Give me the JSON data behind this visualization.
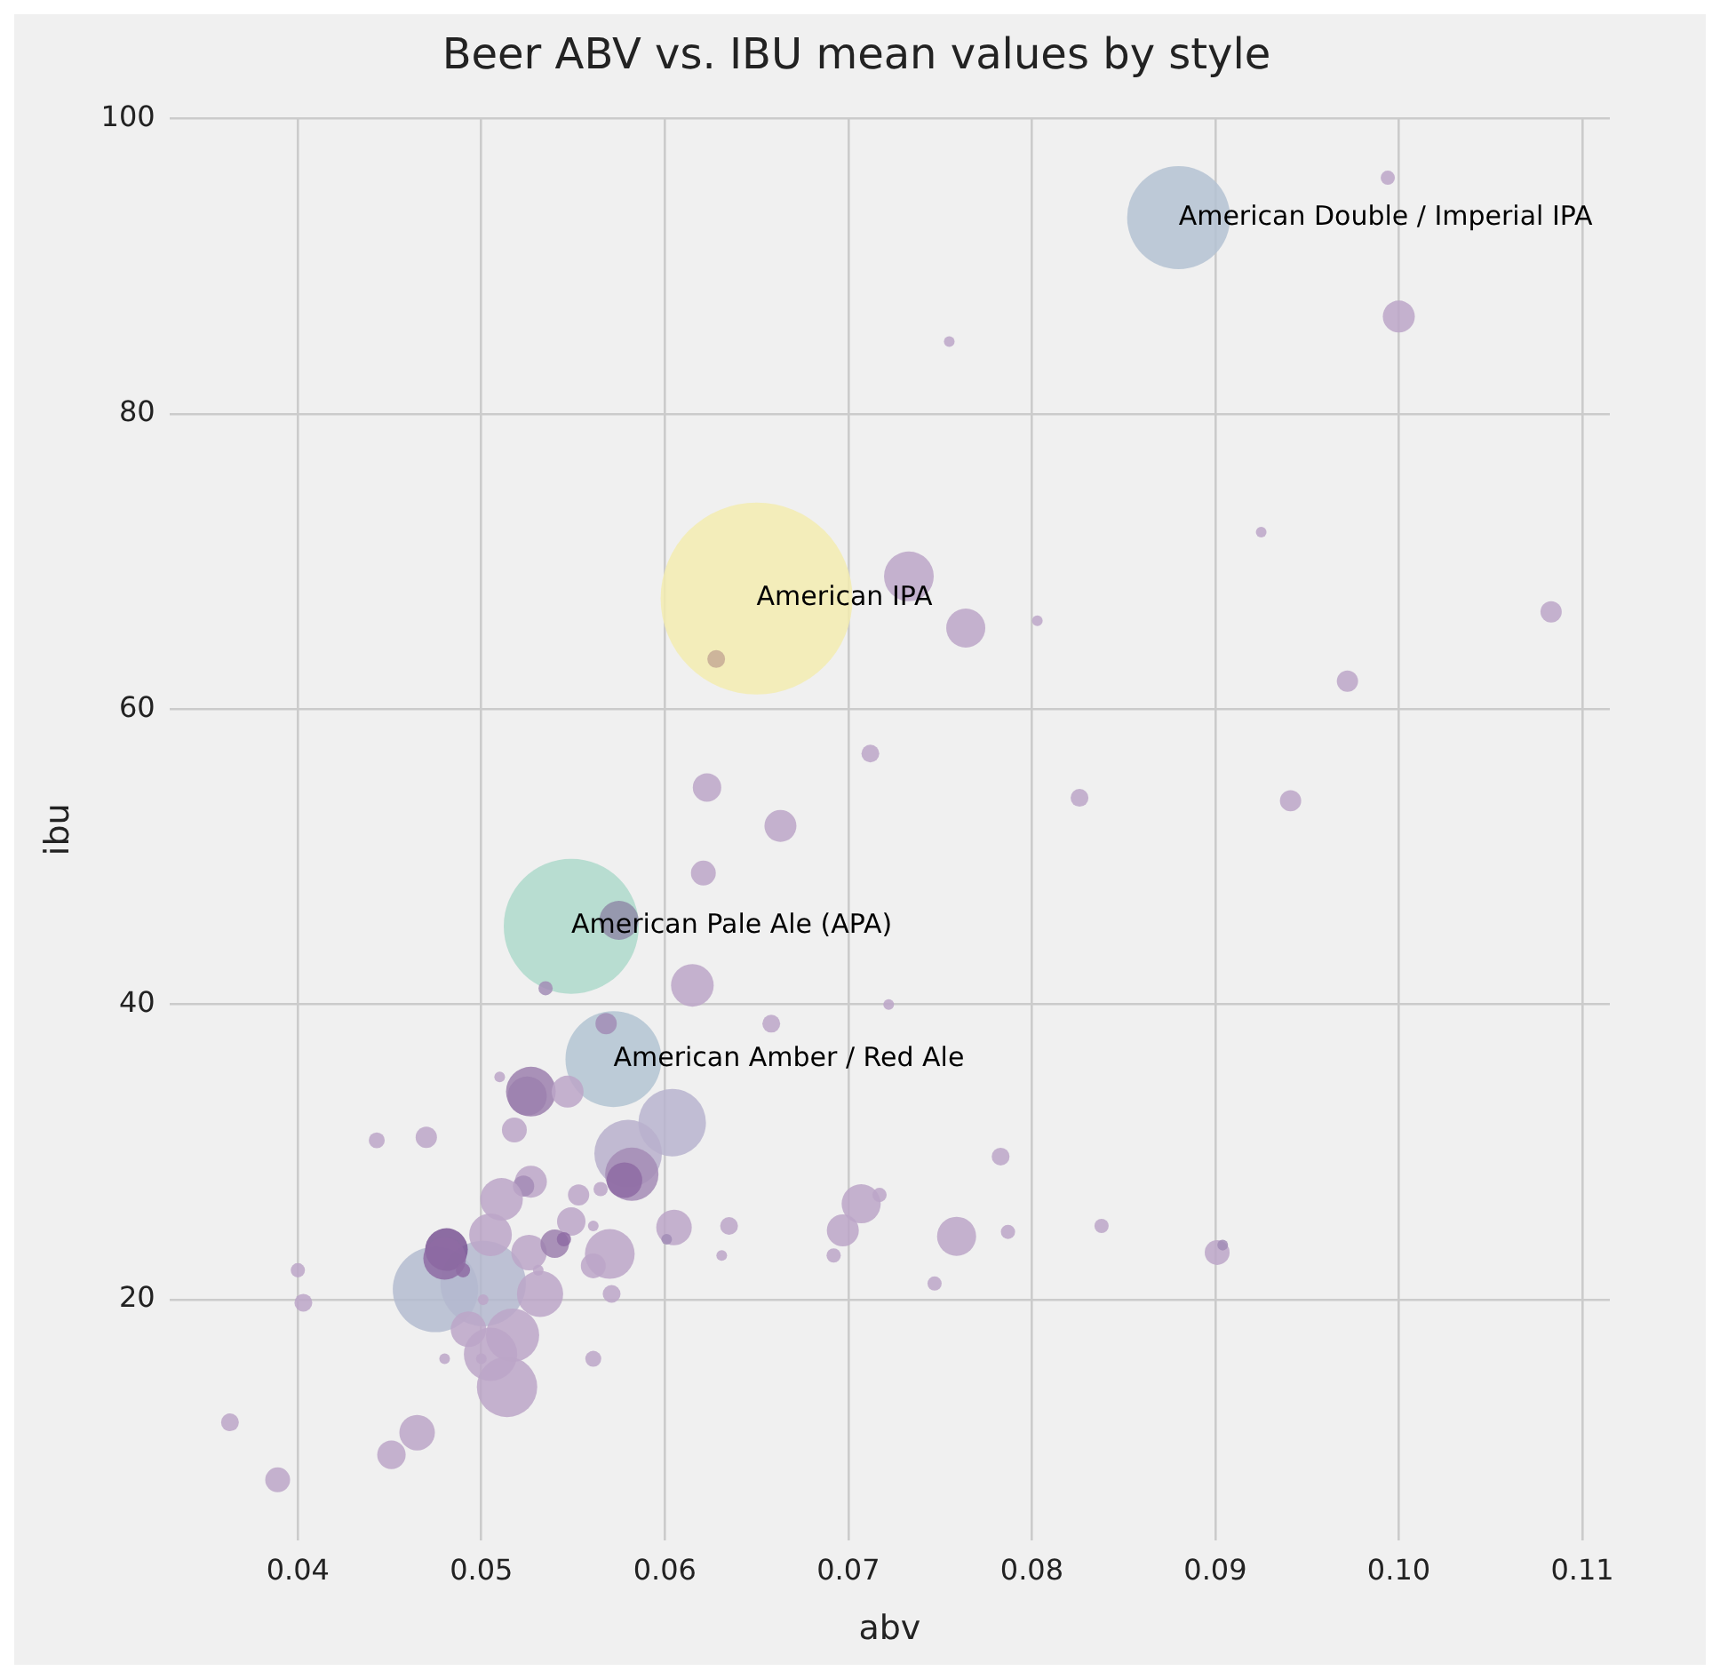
{
  "chart_data": {
    "type": "bubble",
    "title": "Beer ABV vs. IBU mean values by style",
    "xlabel": "abv",
    "ylabel": "ibu",
    "xlim": [
      0.033,
      0.1115
    ],
    "ylim": [
      3.7,
      100
    ],
    "xticks": [
      0.04,
      0.05,
      0.06,
      0.07,
      0.08,
      0.09,
      {
        "value": 0.1,
        "label": "0.10"
      },
      0.11
    ],
    "yticks": [
      20,
      40,
      60,
      80,
      100
    ],
    "grid": true,
    "x": [
      0.065,
      0.088,
      0.0549,
      0.0572,
      0.0475,
      0.0501,
      0.0575,
      0.0535,
      0.0568,
      0.051,
      0.0527,
      0.0525,
      0.0547,
      0.0604,
      0.0443,
      0.047,
      0.0518,
      0.058,
      0.0582,
      0.0578,
      0.0527,
      0.0523,
      0.0511,
      0.0553,
      0.0565,
      0.0505,
      0.0549,
      0.0561,
      0.0526,
      0.054,
      0.0545,
      0.057,
      0.0561,
      0.0531,
      0.0481,
      0.048,
      0.049,
      0.04,
      0.0403,
      0.0532,
      0.0571,
      0.0501,
      0.0493,
      0.0517,
      0.0505,
      0.0514,
      0.048,
      0.05,
      0.0561,
      0.0363,
      0.0465,
      0.0451,
      0.0389,
      0.0605,
      0.0601,
      0.0623,
      0.0621,
      0.0615,
      0.0658,
      0.0722,
      0.0783,
      0.0707,
      0.0717,
      0.0697,
      0.0692,
      0.0759,
      0.0787,
      0.0838,
      0.0747,
      0.0635,
      0.0631,
      0.0733,
      0.0764,
      0.0803,
      0.0628,
      0.0712,
      0.0663,
      0.0826,
      0.1,
      0.0925,
      0.1083,
      0.0972,
      0.0941,
      0.0901,
      0.0904,
      0.0755,
      0.0994
    ],
    "values": [
      67.5,
      93.3,
      45.3,
      36.3,
      20.7,
      21.1,
      45.7,
      41.1,
      38.7,
      35.1,
      34.1,
      33.8,
      34.1,
      32.0,
      30.8,
      31.0,
      31.5,
      29.9,
      28.5,
      28.1,
      28.0,
      27.7,
      26.8,
      27.1,
      27.5,
      24.4,
      25.3,
      25.0,
      23.2,
      23.8,
      24.1,
      23.1,
      22.3,
      22.0,
      23.4,
      22.8,
      22.0,
      22.0,
      19.8,
      20.4,
      20.4,
      20.0,
      18.0,
      17.6,
      16.3,
      14.1,
      16.0,
      16.0,
      16.0,
      11.7,
      11.0,
      9.5,
      7.8,
      24.9,
      24.1,
      54.7,
      48.9,
      41.3,
      38.7,
      40.0,
      29.7,
      26.5,
      27.1,
      24.7,
      23.0,
      24.3,
      24.6,
      25.0,
      21.1,
      25.0,
      23.0,
      69.0,
      65.5,
      66.0,
      63.4,
      57.0,
      52.1,
      54.0,
      86.6,
      72.0,
      66.6,
      61.9,
      53.8,
      23.2,
      23.7,
      84.9,
      96.0
    ],
    "sizes": [
      1,
      0.288,
      0.495,
      0.25,
      0.198,
      0.198,
      0.0415,
      0.0055,
      0.0123,
      0.0031,
      0.0672,
      0.0415,
      0.0278,
      0.124,
      0.0069,
      0.0123,
      0.0168,
      0.124,
      0.0772,
      0.0343,
      0.0278,
      0.0123,
      0.0494,
      0.0123,
      0.0055,
      0.0494,
      0.022,
      0.0031,
      0.0343,
      0.022,
      0.0055,
      0.0672,
      0.0168,
      0.0031,
      0.0494,
      0.0494,
      0.0055,
      0.0055,
      0.0086,
      0.058,
      0.0086,
      0.0031,
      0.0343,
      0.0772,
      0.0772,
      0.099,
      0.0031,
      0.0031,
      0.0069,
      0.0086,
      0.0343,
      0.022,
      0.0168,
      0.0343,
      0.0031,
      0.022,
      0.0168,
      0.0494,
      0.0086,
      0.0031,
      0.0086,
      0.0415,
      0.0055,
      0.0278,
      0.0055,
      0.0415,
      0.0055,
      0.0055,
      0.0055,
      0.0086,
      0.0031,
      0.0672,
      0.0415,
      0.0031,
      0.0086,
      0.0086,
      0.0278,
      0.0086,
      0.0278,
      0.0031,
      0.0123,
      0.0123,
      0.0123,
      0.0168,
      0.0031,
      0.0031,
      0.0055
    ],
    "colors": [
      "#f3ecb0",
      "#b4c2d2",
      "#aed9cb",
      "#b3c4d2",
      "#b4bcd0",
      "#b4b9cf",
      "#8f8ca8",
      "#a28db6",
      "#a28db6",
      "#bca6c8",
      "#9c80ae",
      "#9c80ae",
      "#bca6c8",
      "#b8b4cf",
      "#bca6c8",
      "#bca6c8",
      "#bca6c8",
      "#b8b0cc",
      "#a48cb6",
      "#8e6ba3",
      "#bca6c8",
      "#a48cb6",
      "#bca6c8",
      "#bca6c8",
      "#bca6c8",
      "#bca6c8",
      "#bca6c8",
      "#bca6c8",
      "#bca6c8",
      "#9c80ae",
      "#8e6ba3",
      "#bca6c8",
      "#bca6c8",
      "#bca6c8",
      "#7a5594",
      "#8e6ba3",
      "#8e6ba3",
      "#bca6c8",
      "#bca6c8",
      "#bca6c8",
      "#bca6c8",
      "#bca6c8",
      "#bca6c8",
      "#bca6c8",
      "#bca6c8",
      "#bca6c8",
      "#bca6c8",
      "#bca6c8",
      "#bca6c8",
      "#bca6c8",
      "#bca6c8",
      "#bca6c8",
      "#bca6c8",
      "#bca6c8",
      "#a28db6",
      "#bca6c8",
      "#bca6c8",
      "#bca6c8",
      "#bca6c8",
      "#bca6c8",
      "#bca6c8",
      "#bca6c8",
      "#bca6c8",
      "#bca6c8",
      "#bca6c8",
      "#bca6c8",
      "#bca6c8",
      "#bca6c8",
      "#bca6c8",
      "#bca6c8",
      "#bca6c8",
      "#bca6c8",
      "#bca6c8",
      "#bca6c8",
      "#c6aa95",
      "#bca6c8",
      "#bca6c8",
      "#bca6c8",
      "#bca6c8",
      "#bca6c8",
      "#bca6c8",
      "#bca6c8",
      "#bca6c8",
      "#bca6c8",
      "#a28db6",
      "#bca6c8",
      "#bca6c8"
    ],
    "annotations": [
      {
        "text": "American IPA",
        "x": 0.065,
        "y": 67.5
      },
      {
        "text": "American Double / Imperial IPA",
        "x": 0.088,
        "y": 93.3
      },
      {
        "text": "American Pale Ale (APA)",
        "x": 0.0549,
        "y": 45.3
      },
      {
        "text": "American Amber / Red Ale",
        "x": 0.0572,
        "y": 36.3
      }
    ]
  }
}
